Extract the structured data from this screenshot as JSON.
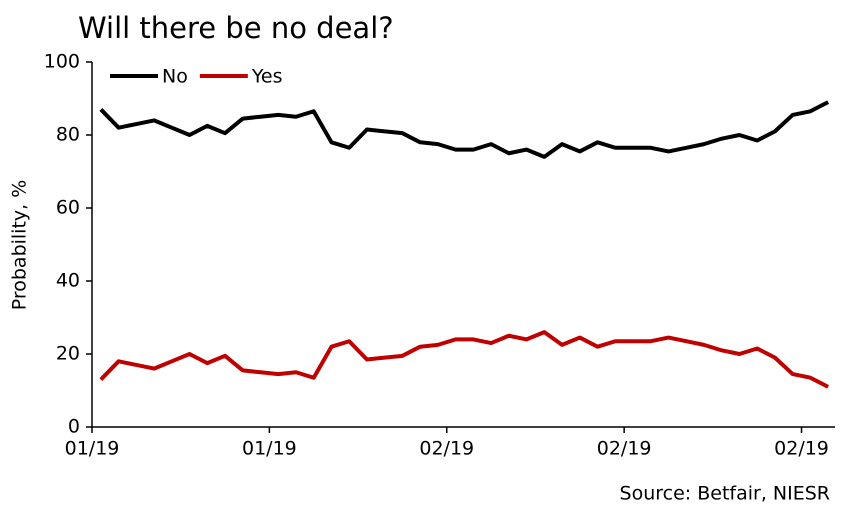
{
  "chart_data": {
    "type": "line",
    "title": "Will there be no deal?",
    "y_label": "Probability, %",
    "source": "Source: Betfair, NIESR",
    "categories": [
      "01/19",
      null,
      null,
      null,
      null,
      null,
      null,
      null,
      null,
      null,
      "01/19",
      null,
      null,
      null,
      null,
      null,
      null,
      null,
      null,
      null,
      "02/19",
      null,
      null,
      null,
      null,
      null,
      null,
      null,
      null,
      null,
      "02/19",
      null,
      null,
      null,
      null,
      null,
      null,
      null,
      null,
      null,
      "02/19",
      null
    ],
    "series": [
      {
        "name": "No",
        "color": "#000000",
        "values": [
          87,
          82,
          83,
          84,
          82,
          80,
          82.5,
          80.5,
          84.5,
          85,
          85.5,
          85,
          86.5,
          78,
          76.5,
          81.5,
          81,
          80.5,
          78,
          77.5,
          76,
          76,
          77.5,
          75,
          76,
          74,
          77.5,
          75.5,
          78,
          76.5,
          76.5,
          76.5,
          75.5,
          76.5,
          77.5,
          79,
          80,
          78.5,
          81,
          85.5,
          86.5,
          89
        ]
      },
      {
        "name": "Yes",
        "color": "#c00000",
        "values": [
          13,
          18,
          17,
          16,
          18,
          20,
          17.5,
          19.5,
          15.5,
          15,
          14.5,
          15,
          13.5,
          22,
          23.5,
          18.5,
          19,
          19.5,
          22,
          22.5,
          24,
          24,
          23,
          25,
          24,
          26,
          22.5,
          24.5,
          22,
          23.5,
          23.5,
          23.5,
          24.5,
          23.5,
          22.5,
          21,
          20,
          21.5,
          19,
          14.5,
          13.5,
          11
        ]
      }
    ],
    "ylim": [
      0,
      100
    ],
    "yticks": [
      0,
      20,
      40,
      60,
      80,
      100
    ],
    "legend": "top-left"
  }
}
